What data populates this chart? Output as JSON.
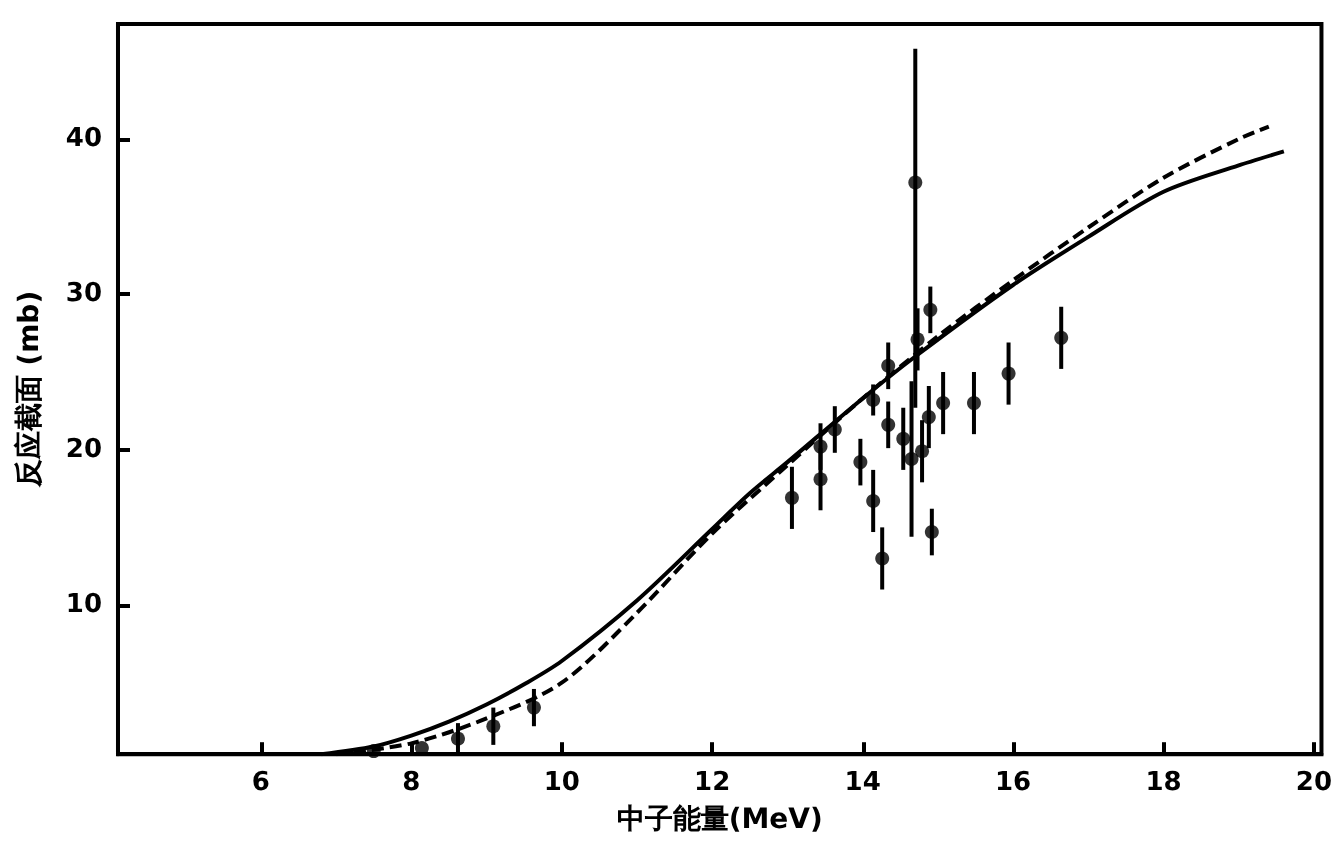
{
  "chart_data": {
    "type": "scatter",
    "xlabel": "中子能量(MeV)",
    "ylabel": "反应截面 (mb)",
    "xlim": [
      4.1,
      20.1
    ],
    "ylim": [
      0.4,
      47.4
    ],
    "xticks": [
      6,
      8,
      10,
      12,
      14,
      16,
      18,
      20
    ],
    "yticks": [
      10,
      20,
      30,
      40
    ],
    "grid": false,
    "marker": "circle",
    "series": [
      {
        "type": "line",
        "line_style": "solid",
        "marker": "none",
        "color": "#000000",
        "x": [
          6.8,
          7.5,
          8,
          8.5,
          9,
          9.5,
          10,
          11,
          12,
          12.5,
          13,
          14,
          14.7,
          16,
          17,
          18,
          19,
          19.6
        ],
        "values": [
          0.4,
          0.9,
          1.6,
          2.5,
          3.6,
          4.9,
          6.4,
          10.3,
          14.9,
          17.2,
          19.2,
          23.3,
          26.0,
          30.6,
          33.7,
          36.6,
          38.3,
          39.2
        ]
      },
      {
        "type": "line",
        "line_style": "dashed",
        "marker": "none",
        "color": "#000000",
        "x": [
          7,
          8,
          9,
          10,
          11,
          12,
          13,
          14,
          15,
          16,
          17,
          18,
          19,
          19.4
        ],
        "values": [
          0.4,
          1.1,
          2.7,
          5.0,
          9.5,
          14.6,
          19.0,
          23.3,
          27.3,
          30.9,
          34.3,
          37.5,
          40.0,
          40.8
        ]
      },
      {
        "color": "#000000",
        "x": [
          7.5,
          8.14,
          8.62,
          9.09,
          9.63,
          13.06,
          13.44,
          13.44,
          13.63,
          13.97,
          14.14,
          14.14,
          14.26,
          14.34,
          14.34,
          14.54,
          14.65,
          14.7,
          14.73,
          14.79,
          14.88,
          14.9,
          14.92,
          15.07,
          15.48,
          15.94,
          16.64
        ],
        "values": [
          0.6,
          0.8,
          1.4,
          2.2,
          3.4,
          16.9,
          18.1,
          20.2,
          21.3,
          19.2,
          23.2,
          16.7,
          13.0,
          25.4,
          21.6,
          20.7,
          19.4,
          37.2,
          27.1,
          19.9,
          22.1,
          29.0,
          14.7,
          23.0,
          23.0,
          24.9,
          27.2
        ],
        "errors": [
          null,
          null,
          1,
          1.2,
          1.2,
          2,
          2,
          1.5,
          1.5,
          1.5,
          1,
          2,
          2,
          1.5,
          1.5,
          2,
          5,
          [
            22.7,
            45.8
          ],
          2,
          2,
          2,
          1.5,
          1.5,
          2,
          2,
          2,
          2
        ]
      }
    ]
  }
}
